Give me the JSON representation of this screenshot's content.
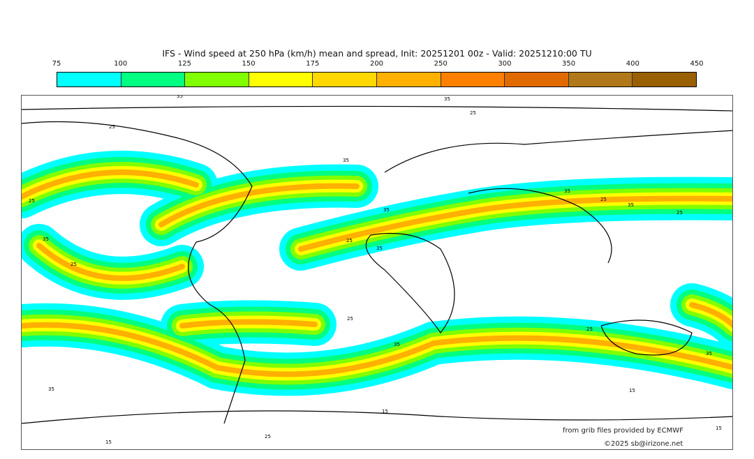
{
  "title": "IFS - Wind speed at 250 hPa (km/h) mean and spread, Init: 20251201 00z - Valid: 20251210:00 TU",
  "colorbar": {
    "ticks": [
      "75",
      "100",
      "125",
      "150",
      "175",
      "200",
      "250",
      "300",
      "350",
      "400",
      "450"
    ],
    "colors": [
      "#00ffff",
      "#00ff80",
      "#80ff00",
      "#ffff00",
      "#ffd800",
      "#ffb000",
      "#ff8000",
      "#e06a00",
      "#b07818",
      "#986000"
    ]
  },
  "contour_labels": [
    "35",
    "35",
    "25",
    "25",
    "35",
    "35",
    "35",
    "25",
    "35",
    "25",
    "25",
    "25",
    "35",
    "35",
    "35",
    "25",
    "15",
    "15",
    "25",
    "15",
    "15",
    "35",
    "25",
    "35",
    "25"
  ],
  "credits": {
    "source": "from grib files provided by ECMWF",
    "copyright": "©2025 sb@irizone.net"
  }
}
